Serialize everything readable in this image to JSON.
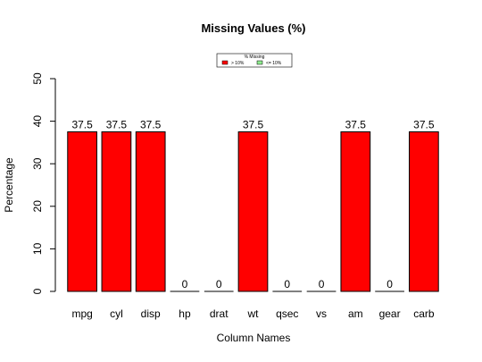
{
  "chart_data": {
    "type": "bar",
    "title": "Missing Values (%)",
    "xlabel": "Column Names",
    "ylabel": "Percentage",
    "categories": [
      "mpg",
      "cyl",
      "disp",
      "hp",
      "drat",
      "wt",
      "qsec",
      "vs",
      "am",
      "gear",
      "carb"
    ],
    "values": [
      37.5,
      37.5,
      37.5,
      0,
      0,
      37.5,
      0,
      0,
      37.5,
      0,
      37.5
    ],
    "value_labels": [
      "37.5",
      "37.5",
      "37.5",
      "0",
      "0",
      "37.5",
      "0",
      "0",
      "37.5",
      "0",
      "37.5"
    ],
    "ylim": [
      0,
      50
    ],
    "yticks": [
      0,
      10,
      20,
      30,
      40,
      50
    ],
    "grid": false,
    "legend": {
      "title": "% Missing",
      "placement": "top-center",
      "entries": [
        {
          "label": "> 10%",
          "color": "#ff0000"
        },
        {
          "label": "<= 10%",
          "color": "#90ee90"
        }
      ]
    },
    "colors": {
      "above_threshold": "#ff0000",
      "below_threshold": "#90ee90"
    },
    "threshold": 10
  }
}
